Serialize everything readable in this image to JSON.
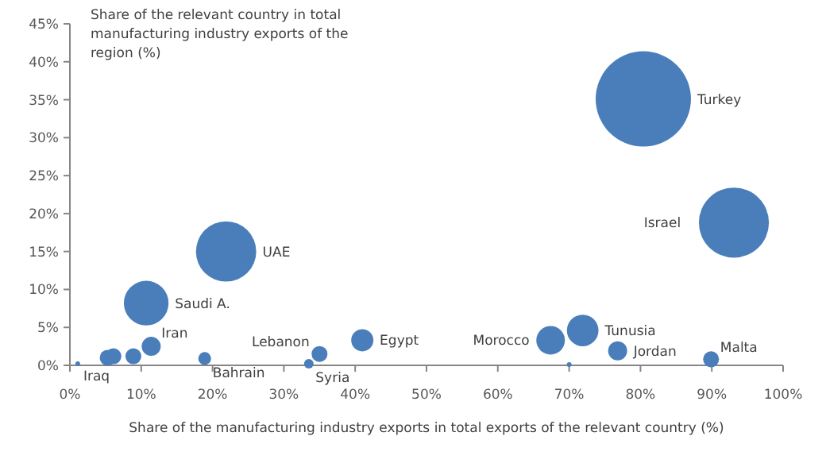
{
  "chart_data": {
    "type": "bubble",
    "xlabel": "Share of the manufacturing industry exports in total exports of the relevant country  (%)",
    "ylabel": "Share of the relevant country  in total manufacturing industry exports of the region (%)",
    "xlim": [
      0,
      100
    ],
    "xticks": [
      {
        "value": 0,
        "label": "0%"
      },
      {
        "value": 10,
        "label": "10%"
      },
      {
        "value": 20,
        "label": "20%"
      },
      {
        "value": 30,
        "label": "30%"
      },
      {
        "value": 40,
        "label": "40%"
      },
      {
        "value": 50,
        "label": "50%"
      },
      {
        "value": 60,
        "label": "60%"
      },
      {
        "value": 70,
        "label": "70%"
      },
      {
        "value": 80,
        "label": "80%"
      },
      {
        "value": 90,
        "label": "90%"
      },
      {
        "value": 100,
        "label": "100%"
      }
    ],
    "ylim": [
      0,
      45
    ],
    "yticks": [
      {
        "value": 0,
        "label": "0%"
      },
      {
        "value": 5,
        "label": "5%"
      },
      {
        "value": 10,
        "label": "10%"
      },
      {
        "value": 15,
        "label": "15%"
      },
      {
        "value": 20,
        "label": "20%"
      },
      {
        "value": 25,
        "label": "25%"
      },
      {
        "value": 30,
        "label": "30%"
      },
      {
        "value": 35,
        "label": "35%"
      },
      {
        "value": 40,
        "label": "40%"
      },
      {
        "value": 45,
        "label": "45%"
      }
    ],
    "grid": false,
    "series": [
      {
        "color": "#4a7ebb",
        "x": [
          80.4,
          93.1,
          21.9,
          10.7,
          71.9,
          67.4,
          41.0,
          11.4,
          76.8,
          35.0,
          89.9,
          18.9,
          33.5,
          1.1,
          5.3,
          6.1,
          8.9,
          70.0
        ],
        "values": [
          35.1,
          18.8,
          15.0,
          8.2,
          4.6,
          3.3,
          3.3,
          2.5,
          1.9,
          1.5,
          0.8,
          0.9,
          0.2,
          0.2,
          1.0,
          1.2,
          1.2,
          0.1
        ],
        "sizes": [
          1,
          0.54,
          0.4,
          0.22,
          0.11,
          0.09,
          0.054,
          0.04,
          0.04,
          0.028,
          0.028,
          0.018,
          0.01,
          0.0025,
          0.028,
          0.028,
          0.028,
          0.0025
        ]
      }
    ],
    "annotations": [
      "Turkey",
      "Israel",
      "UAE",
      "Saudi A.",
      "Tunusia",
      "Morocco",
      "Egypt",
      "Iran",
      "Jordan",
      "Lebanon",
      "Malta",
      "Bahrain",
      "Syria",
      "Iraq"
    ]
  }
}
